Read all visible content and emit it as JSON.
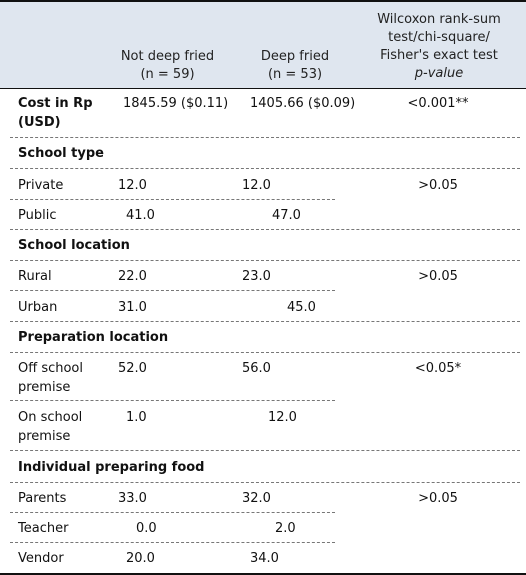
{
  "header": {
    "col1_line1": "Not deep fried",
    "col1_line2": "(n = 59)",
    "col2_line1": "Deep fried",
    "col2_line2": "(n = 53)",
    "col3_line1": "Wilcoxon rank-sum",
    "col3_line2": "test/chi-square/",
    "col3_line3": "Fisher's exact test",
    "col3_line4": "p-value"
  },
  "cost": {
    "label_line1": "Cost in Rp",
    "label_line2": "(USD)",
    "not_deep_fried": "1845.59 ($0.11)",
    "deep_fried": "1405.66 ($0.09)",
    "p_value": "<0.001**"
  },
  "sections": [
    {
      "title": "School type",
      "p_value": ">0.05",
      "rows": [
        {
          "label": "Private",
          "not_deep_fried": "12.0",
          "deep_fried": "12.0"
        },
        {
          "label": "Public",
          "not_deep_fried": "41.0",
          "deep_fried": "47.0"
        }
      ]
    },
    {
      "title": "School location",
      "p_value": ">0.05",
      "rows": [
        {
          "label": "Rural",
          "not_deep_fried": "22.0",
          "deep_fried": "23.0"
        },
        {
          "label": "Urban",
          "not_deep_fried": "31.0",
          "deep_fried": "45.0"
        }
      ]
    },
    {
      "title": "Preparation location",
      "p_value": "<0.05*",
      "rows": [
        {
          "label_line1": "Off school",
          "label_line2": "premise",
          "not_deep_fried": "52.0",
          "deep_fried": "56.0"
        },
        {
          "label_line1": "On school",
          "label_line2": "premise",
          "not_deep_fried": "1.0",
          "deep_fried": "12.0"
        }
      ]
    },
    {
      "title": "Individual preparing food",
      "p_value": ">0.05",
      "rows": [
        {
          "label": "Parents",
          "not_deep_fried": "33.0",
          "deep_fried": "32.0"
        },
        {
          "label": "Teacher",
          "not_deep_fried": "0.0",
          "deep_fried": "2.0"
        },
        {
          "label": "Vendor",
          "not_deep_fried": "20.0",
          "deep_fried": "34.0"
        }
      ]
    }
  ]
}
